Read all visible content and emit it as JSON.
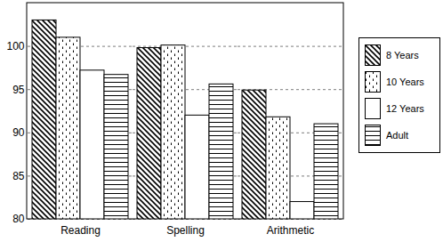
{
  "chart_data": {
    "type": "bar",
    "categories": [
      "Reading",
      "Spelling",
      "Arithmetic"
    ],
    "series": [
      {
        "name": "8 Years",
        "values": [
          103,
          99.8,
          94.9
        ]
      },
      {
        "name": "10 Years",
        "values": [
          101,
          100.1,
          91.8
        ]
      },
      {
        "name": "12 Years",
        "values": [
          97.2,
          92,
          82
        ]
      },
      {
        "name": "Adult",
        "values": [
          96.7,
          95.6,
          91
        ]
      }
    ],
    "ylim": [
      80,
      105
    ],
    "yticks": [
      80,
      85,
      90,
      95,
      100
    ],
    "grid": true,
    "legend": "right"
  }
}
